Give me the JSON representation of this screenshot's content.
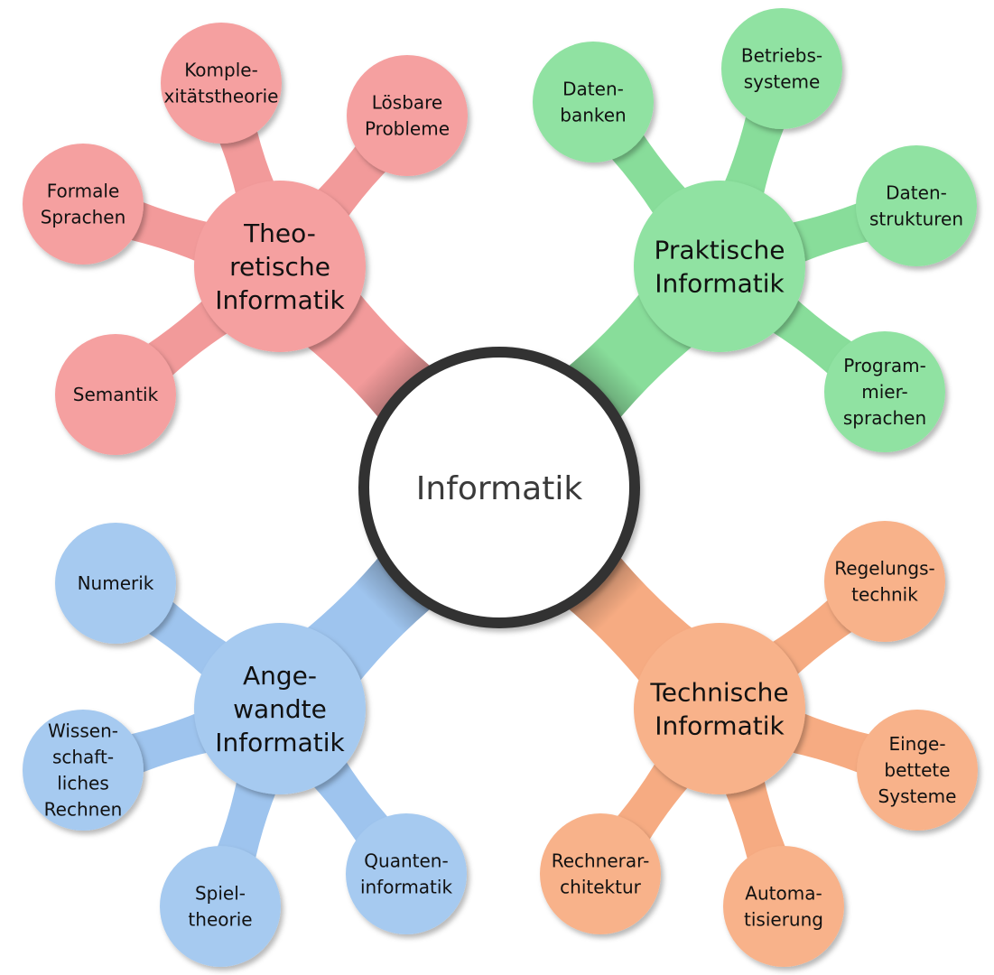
{
  "root": {
    "label": "Informatik"
  },
  "branches": [
    {
      "id": "theoretisch",
      "color": "#f5a0a0",
      "link_color": "#f29a9a",
      "label_lines": [
        "Theo-",
        "retische",
        "Informatik"
      ],
      "children": [
        {
          "id": "komplexitaet",
          "label_lines": [
            "Komple-",
            "xitätstheorie"
          ]
        },
        {
          "id": "loesbare",
          "label_lines": [
            "Lösbare",
            "Probleme"
          ]
        },
        {
          "id": "formale",
          "label_lines": [
            "Formale",
            "Sprachen"
          ]
        },
        {
          "id": "semantik",
          "label_lines": [
            "Semantik"
          ]
        }
      ]
    },
    {
      "id": "praktisch",
      "color": "#90e2a2",
      "link_color": "#88dd9a",
      "label_lines": [
        "Praktische",
        "Informatik"
      ],
      "children": [
        {
          "id": "datenbanken",
          "label_lines": [
            "Daten-",
            "banken"
          ]
        },
        {
          "id": "betriebssysteme",
          "label_lines": [
            "Betriebs-",
            "systeme"
          ]
        },
        {
          "id": "datenstrukturen",
          "label_lines": [
            "Daten-",
            "strukturen"
          ]
        },
        {
          "id": "programmiersprachen",
          "label_lines": [
            "Program-",
            "mier-",
            "sprachen"
          ]
        }
      ]
    },
    {
      "id": "angewandt",
      "color": "#a6caf0",
      "link_color": "#9ec4ee",
      "label_lines": [
        "Ange-",
        "wandte",
        "Informatik"
      ],
      "children": [
        {
          "id": "numerik",
          "label_lines": [
            "Numerik"
          ]
        },
        {
          "id": "wissenschaftlich",
          "label_lines": [
            "Wissen-",
            "schaft-",
            "liches",
            "Rechnen"
          ]
        },
        {
          "id": "spieltheorie",
          "label_lines": [
            "Spiel-",
            "theorie"
          ]
        },
        {
          "id": "quanten",
          "label_lines": [
            "Quanten-",
            "informatik"
          ]
        }
      ]
    },
    {
      "id": "technisch",
      "color": "#f8b28a",
      "link_color": "#f6ab82",
      "label_lines": [
        "Technische",
        "Informatik"
      ],
      "children": [
        {
          "id": "regelung",
          "label_lines": [
            "Regelungs-",
            "technik"
          ]
        },
        {
          "id": "eingebettet",
          "label_lines": [
            "Einge-",
            "bettete",
            "Systeme"
          ]
        },
        {
          "id": "rechnerarch",
          "label_lines": [
            "Rechnerar-",
            "chitektur"
          ]
        },
        {
          "id": "automatisierung",
          "label_lines": [
            "Automa-",
            "tisierung"
          ]
        }
      ]
    }
  ]
}
